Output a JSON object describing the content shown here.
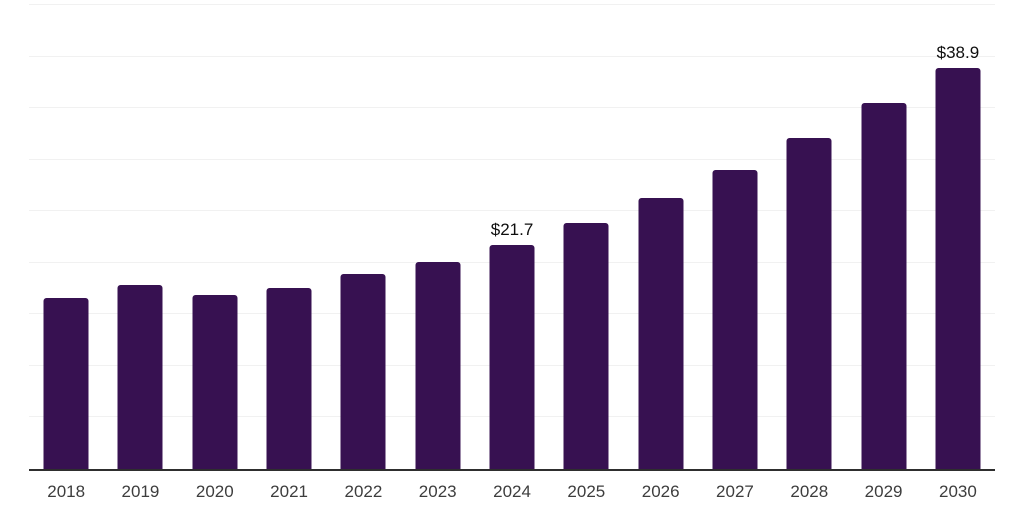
{
  "chart_data": {
    "type": "bar",
    "title": "",
    "xlabel": "",
    "ylabel": "",
    "categories": [
      "2018",
      "2019",
      "2020",
      "2021",
      "2022",
      "2023",
      "2024",
      "2025",
      "2026",
      "2027",
      "2028",
      "2029",
      "2030"
    ],
    "values": [
      16.6,
      17.8,
      16.9,
      17.6,
      18.9,
      20.1,
      21.7,
      23.9,
      26.3,
      29.0,
      32.1,
      35.5,
      38.9
    ],
    "data_labels": [
      "",
      "",
      "",
      "",
      "",
      "",
      "$21.7",
      "",
      "",
      "",
      "",
      "",
      "$38.9"
    ],
    "ylim": [
      0,
      45
    ],
    "grid_step": 5,
    "grid": "horizontal",
    "legend": "none",
    "y_axis_labels_visible": false,
    "colors": {
      "bar": "#371151",
      "grid": "#f1f1f1",
      "axis": "#2e2e2e",
      "tick_label": "#3d3d3d",
      "data_label": "#0e0e0e",
      "background": "#ffffff"
    }
  }
}
